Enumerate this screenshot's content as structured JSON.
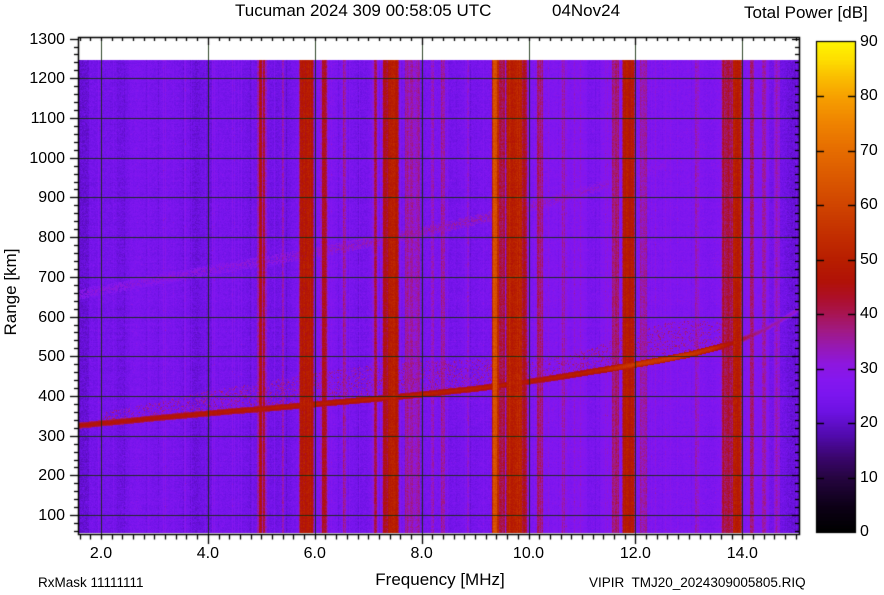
{
  "chart_data": {
    "type": "heatmap",
    "title": "Tucuman 2024 309 00:58:05 UTC",
    "date_label": "04Nov24",
    "xlabel": "Frequency [MHz]",
    "ylabel": "Range [km]",
    "colorbar_label": "Total Power [dB]",
    "footer_left": "RxMask 11111111",
    "footer_right": "VIPIR  TMJ20_2024309005805.RIQ",
    "x_axis": {
      "min": 1.57,
      "max": 15.08,
      "major_ticks": [
        2,
        4,
        6,
        8,
        10,
        12,
        14
      ],
      "tick_labels": [
        "2.0",
        "4.0",
        "6.0",
        "8.0",
        "10.0",
        "12.0",
        "14.0"
      ],
      "minor_step": 0.2,
      "grid_step": 2
    },
    "y_axis": {
      "min": 50,
      "max": 1304,
      "major_ticks": [
        100,
        200,
        300,
        400,
        500,
        600,
        700,
        800,
        900,
        1000,
        1100,
        1200,
        1300
      ],
      "tick_labels": [
        "100",
        "200",
        "300",
        "400",
        "500",
        "600",
        "700",
        "800",
        "900",
        "1000",
        "1100",
        "1200",
        "1300"
      ],
      "minor_step": 20,
      "grid_step": 100
    },
    "colorbar": {
      "min": 0,
      "max": 90,
      "ticks": [
        0,
        10,
        20,
        30,
        40,
        50,
        60,
        70,
        80,
        90
      ],
      "tick_labels": [
        "0",
        "10",
        "20",
        "30",
        "40",
        "50",
        "60",
        "70",
        "80",
        "90"
      ]
    },
    "colormap": [
      [
        0,
        "#000000"
      ],
      [
        5,
        "#0e0118"
      ],
      [
        10,
        "#260540"
      ],
      [
        14,
        "#3c0670"
      ],
      [
        18,
        "#530bb0"
      ],
      [
        22,
        "#6d12e2"
      ],
      [
        25,
        "#7b15ef"
      ],
      [
        28,
        "#8517f0"
      ],
      [
        31,
        "#8e17df"
      ],
      [
        34,
        "#9719b4"
      ],
      [
        37,
        "#a11a84"
      ],
      [
        40,
        "#a81554"
      ],
      [
        43,
        "#ad0f2a"
      ],
      [
        46,
        "#b11208"
      ],
      [
        50,
        "#b81e00"
      ],
      [
        55,
        "#c43000"
      ],
      [
        60,
        "#d04400"
      ],
      [
        65,
        "#db5800"
      ],
      [
        70,
        "#e66c00"
      ],
      [
        75,
        "#ef8300"
      ],
      [
        80,
        "#f7a000"
      ],
      [
        84,
        "#fbc200"
      ],
      [
        87,
        "#fee000"
      ],
      [
        90,
        "#fff400"
      ]
    ],
    "grid_color": "rgba(20,45,12,0.88)",
    "background_noise_db": 24.5,
    "data_extent_km": [
      55,
      1245
    ],
    "rfi_bands": [
      {
        "f_lo": 4.95,
        "f_hi": 5.005,
        "db": 44
      },
      {
        "f_lo": 5.03,
        "f_hi": 5.075,
        "db": 43
      },
      {
        "f_lo": 5.38,
        "f_hi": 5.42,
        "db": 32
      },
      {
        "f_lo": 5.73,
        "f_hi": 5.96,
        "db": 48
      },
      {
        "f_lo": 6.13,
        "f_hi": 6.23,
        "db": 42
      },
      {
        "f_lo": 6.53,
        "f_hi": 6.585,
        "db": 36
      },
      {
        "f_lo": 7.1,
        "f_hi": 7.16,
        "db": 40
      },
      {
        "f_lo": 7.275,
        "f_hi": 7.37,
        "db": 43
      },
      {
        "f_lo": 7.38,
        "f_hi": 7.56,
        "db": 49
      },
      {
        "f_lo": 7.69,
        "f_hi": 7.97,
        "db": 34
      },
      {
        "f_lo": 8.18,
        "f_hi": 8.24,
        "db": 33
      },
      {
        "f_lo": 8.37,
        "f_hi": 8.43,
        "db": 35
      },
      {
        "f_lo": 8.84,
        "f_hi": 8.88,
        "db": 32
      },
      {
        "f_lo": 9.335,
        "f_hi": 9.415,
        "db": 63
      },
      {
        "f_lo": 9.43,
        "f_hi": 9.565,
        "db": 41
      },
      {
        "f_lo": 9.6,
        "f_hi": 9.885,
        "db": 51
      },
      {
        "f_lo": 9.9,
        "f_hi": 9.97,
        "db": 43
      },
      {
        "f_lo": 10.16,
        "f_hi": 10.27,
        "db": 37
      },
      {
        "f_lo": 10.62,
        "f_hi": 10.68,
        "db": 33
      },
      {
        "f_lo": 11.57,
        "f_hi": 11.69,
        "db": 38
      },
      {
        "f_lo": 11.77,
        "f_hi": 11.965,
        "db": 48
      },
      {
        "f_lo": 12.08,
        "f_hi": 12.22,
        "db": 34
      },
      {
        "f_lo": 13.11,
        "f_hi": 13.19,
        "db": 33
      },
      {
        "f_lo": 13.62,
        "f_hi": 13.815,
        "db": 41
      },
      {
        "f_lo": 13.83,
        "f_hi": 13.97,
        "db": 49
      },
      {
        "f_lo": 14.14,
        "f_hi": 14.21,
        "db": 37
      },
      {
        "f_lo": 14.36,
        "f_hi": 14.45,
        "db": 34
      },
      {
        "f_lo": 14.6,
        "f_hi": 14.7,
        "db": 32
      }
    ],
    "attenuated_bands": [
      {
        "f_lo": 1.57,
        "f_hi": 1.78,
        "db_delta": -3
      },
      {
        "f_lo": 2.3,
        "f_hi": 2.55,
        "db_delta": -1.5
      },
      {
        "f_lo": 3.66,
        "f_hi": 4.08,
        "db_delta": -2.5
      },
      {
        "f_lo": 11.1,
        "f_hi": 11.35,
        "db_delta": -1.5
      },
      {
        "f_lo": 14.5,
        "f_hi": 15.08,
        "db_delta": -2.5
      }
    ],
    "echo_traces": {
      "main": {
        "points": [
          [
            1.57,
            325
          ],
          [
            2.0,
            331
          ],
          [
            2.5,
            337
          ],
          [
            3.0,
            344
          ],
          [
            3.5,
            350
          ],
          [
            4.0,
            356
          ],
          [
            4.5,
            362
          ],
          [
            5.0,
            367
          ],
          [
            5.5,
            373
          ],
          [
            6.0,
            379
          ],
          [
            6.5,
            385
          ],
          [
            7.0,
            391
          ],
          [
            7.5,
            397
          ],
          [
            8.0,
            404
          ],
          [
            8.5,
            411
          ],
          [
            9.0,
            418
          ],
          [
            9.5,
            427
          ],
          [
            10.0,
            436
          ],
          [
            10.5,
            446
          ],
          [
            11.0,
            457
          ],
          [
            11.5,
            468
          ],
          [
            12.0,
            479
          ],
          [
            12.5,
            491
          ],
          [
            13.0,
            504
          ],
          [
            13.5,
            521
          ],
          [
            13.8,
            532
          ],
          [
            14.1,
            548
          ],
          [
            14.4,
            566
          ],
          [
            14.7,
            588
          ],
          [
            15.08,
            620
          ]
        ],
        "power_db": [
          [
            1.57,
            47
          ],
          [
            4,
            48
          ],
          [
            7,
            50
          ],
          [
            9.3,
            50
          ],
          [
            9.8,
            48
          ],
          [
            11.3,
            51
          ],
          [
            11.9,
            57
          ],
          [
            12.8,
            58
          ],
          [
            13.4,
            55
          ],
          [
            13.8,
            47
          ],
          [
            14.1,
            40
          ],
          [
            14.4,
            36
          ],
          [
            15.08,
            32
          ]
        ],
        "half_width_km": 8
      },
      "spread_above": {
        "f_lo": 2.0,
        "f_hi": 13.6,
        "height_km": [
          [
            2,
            20
          ],
          [
            3,
            35
          ],
          [
            4,
            50
          ],
          [
            5,
            62
          ],
          [
            6,
            72
          ],
          [
            7,
            80
          ],
          [
            8,
            78
          ],
          [
            9,
            68
          ],
          [
            9.5,
            60
          ],
          [
            10,
            52
          ],
          [
            10.5,
            46
          ],
          [
            11,
            50
          ],
          [
            11.5,
            62
          ],
          [
            12,
            75
          ],
          [
            12.5,
            85
          ],
          [
            13,
            80
          ],
          [
            13.6,
            55
          ]
        ],
        "power_db_range": [
          29.5,
          39.5
        ],
        "density": 0.3
      },
      "second_hop": {
        "points": [
          [
            1.57,
            655
          ],
          [
            2,
            666
          ],
          [
            3,
            692
          ],
          [
            4,
            716
          ],
          [
            5,
            738
          ],
          [
            6,
            761
          ],
          [
            7,
            786
          ],
          [
            8,
            813
          ],
          [
            9,
            843
          ],
          [
            9.5,
            859
          ],
          [
            10,
            876
          ],
          [
            10.5,
            894
          ],
          [
            11,
            914
          ],
          [
            11.5,
            934
          ],
          [
            12,
            956
          ],
          [
            12.6,
            984
          ]
        ],
        "power_db": [
          [
            1.57,
            31
          ],
          [
            5,
            32
          ],
          [
            6.5,
            34
          ],
          [
            8,
            35
          ],
          [
            9.5,
            35
          ],
          [
            10.5,
            34
          ],
          [
            11.5,
            32
          ],
          [
            12.6,
            30
          ]
        ],
        "half_width_km": 13,
        "density": 0.55,
        "f_hi": 12.6
      }
    }
  }
}
